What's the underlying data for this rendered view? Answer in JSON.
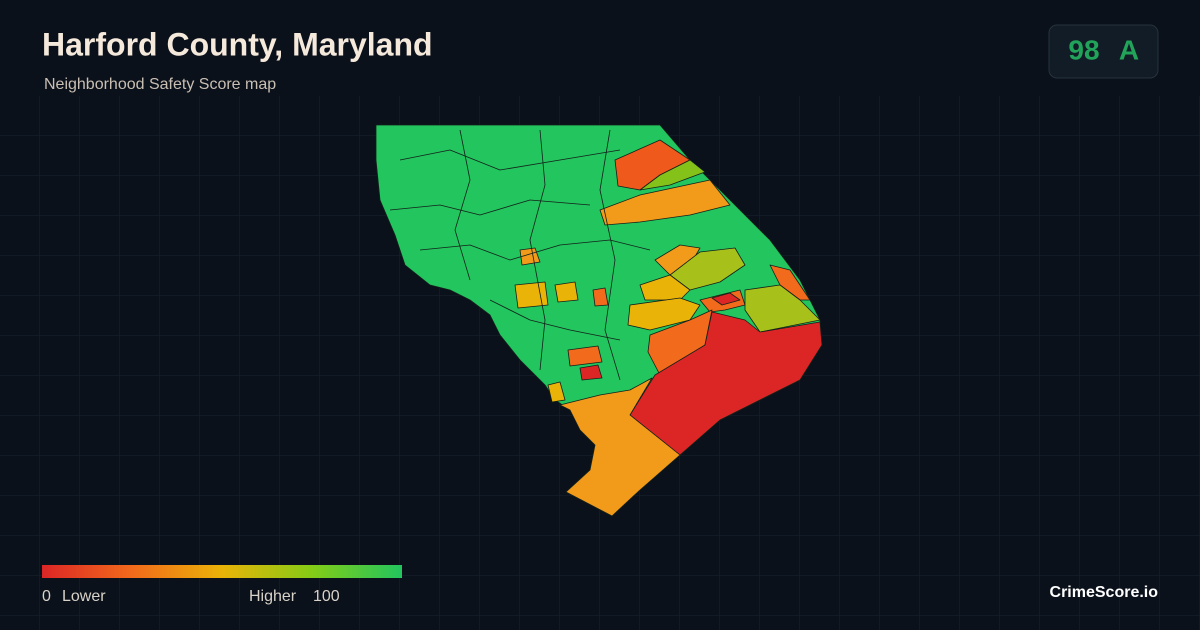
{
  "header": {
    "title": "Harford County, Maryland",
    "subtitle": "Neighborhood Safety Score map"
  },
  "score": {
    "value": "98",
    "grade": "A"
  },
  "legend": {
    "min": "0",
    "min_label": "Lower",
    "max_label": "Higher",
    "max": "100"
  },
  "footer": {
    "brand": "CrimeScore.io"
  }
}
